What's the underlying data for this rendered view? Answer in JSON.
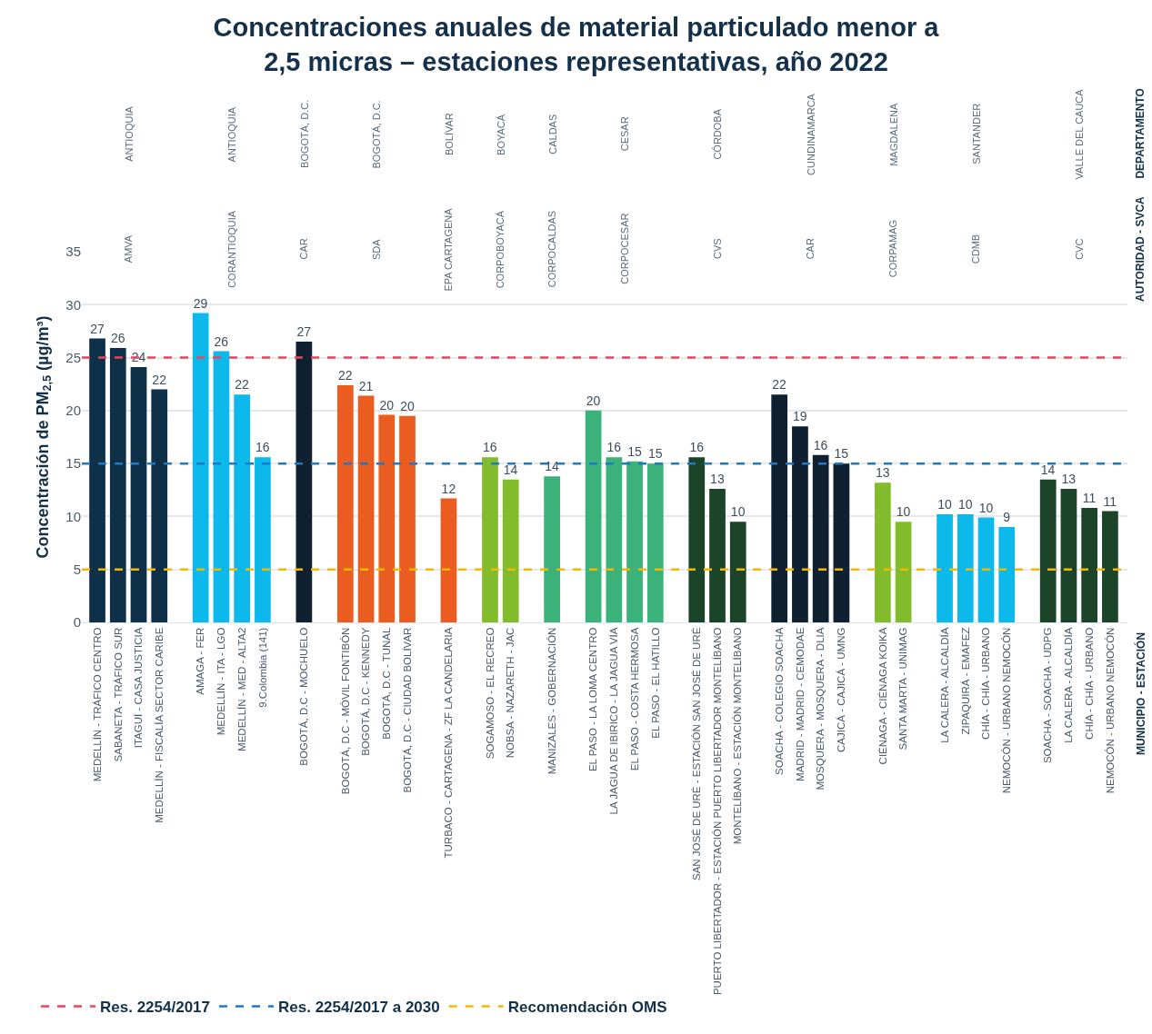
{
  "chart_data": {
    "type": "bar",
    "title": "Concentraciones anuales de material particulado menor a\n2,5 micras – estaciones representativas, año 2022",
    "ylabel": "Concentración de PM$_{2,5}$ (µg/m³)",
    "categories": [
      "MEDELLÍN - TRÁFICO CENTRO",
      "SABANETA - TRÁFICO SUR",
      "ITAGUÍ - CASA JUSTICIA",
      "MEDELLÍN - FISCALÍA SECTOR CARIBE",
      null,
      "AMAGA - FER",
      "MEDELLÍN - ITA - LGO",
      "MEDELLÍN - MED - ALTA2",
      "9.Colombia (141)",
      null,
      "BOGOTÁ, D.C - MOCHUELO",
      null,
      "BOGOTÁ, D.C - MÓVIL FONTIBÓN",
      "BOGOTÁ, D.C - KENNEDY",
      "BOGOTÁ, D.C - TUNAL",
      "BOGOTÁ, D.C - CIUDAD BOLÍVAR",
      null,
      "TURBACO - CARTAGENA - ZF LA CANDELARIA",
      null,
      "SOGAMOSO - EL RECREO",
      "NOBSA - NAZARETH - JAC",
      null,
      "MANIZALES - GOBERNACIÓN",
      null,
      "EL PASO - LA LOMA CENTRO",
      "LA JAGUA DE IBIRICO - LA JAGUA VÍA",
      "EL PASO - COSTA HERMOSA",
      "EL PASO - EL HATILLO",
      null,
      "SAN JOSÉ DE URÉ - ESTACIÓN SAN JOSÉ DE URÉ",
      "PUERTO LIBERTADOR - ESTACIÓN PUERTO LIBERTADOR MONTELÍBANO",
      "MONTELÍBANO - ESTACIÓN MONTELÍBANO",
      null,
      "SOACHA - COLEGIO SOACHA",
      "MADRID - MADRID - CEMODAE",
      "MOSQUERA - MOSQUERA - DLIA",
      "CAJICÁ - CAJICÁ - UMNG",
      null,
      "CIÉNAGA - CIÉNAGA KOIKA",
      "SANTA MARTA - UNIMAG",
      null,
      "LA CALERA - ALCALDÍA",
      "ZIPAQUIRÁ - EMAFEZ",
      "CHÍA - CHÍA - URBANO",
      "NEMOCÓN - URBANO NEMOCÓN",
      null,
      "SOACHA - SOACHA - UDPG",
      "LA CALERA - ALCALDÍA",
      "CHÍA - CHÍA - URBANO",
      "NEMOCÓN - URBANO NEMOCÓN"
    ],
    "values": [
      26.8,
      25.9,
      24.1,
      22.0,
      null,
      29.2,
      25.6,
      21.5,
      15.6,
      null,
      26.5,
      null,
      22.4,
      21.4,
      19.6,
      19.5,
      null,
      11.7,
      null,
      15.6,
      13.5,
      null,
      13.8,
      null,
      20.0,
      15.6,
      15.2,
      15.0,
      null,
      15.6,
      12.6,
      9.5,
      null,
      21.5,
      18.5,
      15.8,
      15.0,
      null,
      13.2,
      9.5,
      null,
      10.2,
      10.2,
      9.9,
      9.0,
      null,
      13.5,
      12.6,
      10.8,
      10.5
    ],
    "value_labels": [
      "27",
      "26",
      "24",
      "22",
      null,
      "29",
      "26",
      "22",
      "16",
      null,
      "27",
      null,
      "22",
      "21",
      "20",
      "20",
      null,
      "12",
      null,
      "16",
      "14",
      null,
      "14",
      null,
      "20",
      "16",
      "15",
      "15",
      null,
      "16",
      "13",
      "10",
      null,
      "22",
      "19",
      "16",
      "15",
      null,
      "13",
      "10",
      null,
      "10",
      "10",
      "10",
      "9",
      null,
      "14",
      "13",
      "11",
      "11"
    ],
    "colors": [
      "#0f3049",
      "#0f3049",
      "#0f3049",
      "#0f3049",
      null,
      "#0cb9ea",
      "#0cb9ea",
      "#0cb9ea",
      "#0cb9ea",
      null,
      "#0f2030",
      null,
      "#ea5c1f",
      "#ea5c1f",
      "#ea5c1f",
      "#ea5c1f",
      null,
      "#ea5c1f",
      null,
      "#82bb2b",
      "#82bb2b",
      null,
      "#3bb27a",
      null,
      "#3bb27a",
      "#3bb27a",
      "#3bb27a",
      "#3bb27a",
      null,
      "#1c4428",
      "#1c4428",
      "#1c4428",
      null,
      "#0f2030",
      "#0f2030",
      "#0f2030",
      "#0f2030",
      null,
      "#82bb2b",
      "#82bb2b",
      null,
      "#0cb9ea",
      "#0cb9ea",
      "#0cb9ea",
      "#0cb9ea",
      null,
      "#1c4428",
      "#1c4428",
      "#1c4428",
      "#1c4428"
    ],
    "legend": "bottom left",
    "ylim": [
      0,
      35
    ],
    "yticks": [
      0,
      5,
      10,
      15,
      20,
      25,
      30,
      35
    ],
    "grid": "y",
    "ref_lines": [
      {
        "axis": "y",
        "value": 25,
        "label": "Res. 2254/2017",
        "color": "#e8465a",
        "line_style": "dashed"
      },
      {
        "axis": "y",
        "value": 15,
        "label": "Res. 2254/2017 a 2030",
        "color": "#1f78c8",
        "line_style": "dashed"
      },
      {
        "axis": "y",
        "value": 5,
        "label": "Recomendación OMS",
        "color": "#f5b800",
        "line_style": "dashed"
      }
    ],
    "annotations": [
      "ANTIOQUIA",
      "AMVA",
      "ANTIOQUIA",
      "CORANTIOQUIA",
      "BOGOTÁ, D.C.",
      "CAR",
      "BOGOTÁ, D.C.",
      "SDA",
      "BOLÍVAR",
      "EPA CARTAGENA",
      "BOYACÁ",
      "CORPOBOYACÁ",
      "CALDAS",
      "CORPOCALDAS",
      "CESAR",
      "CORPOCESAR",
      "CÓRDOBA",
      "CVS",
      "CUNDINAMARCA",
      "CAR",
      "MAGDALENA",
      "CORPAMAG",
      "SANTANDER",
      "CDMB",
      "VALLE DEL CAUCA",
      "CVC",
      "DEPARTAMENTO",
      "AUTORIDAD - SVCA",
      "MUNICIPIO - ESTACIÓN"
    ]
  }
}
